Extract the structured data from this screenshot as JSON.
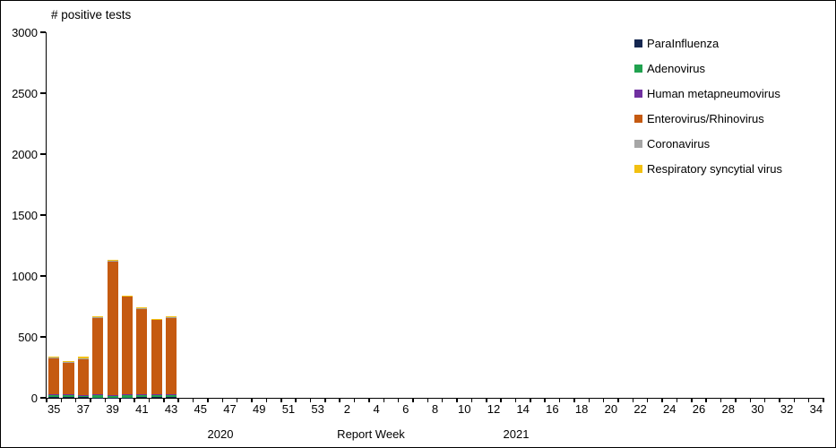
{
  "chart_data": {
    "type": "bar",
    "stacked": true,
    "title": "# positive tests",
    "xlabel": "Report Week",
    "ylabel": "# positive tests",
    "ylim": [
      0,
      3000
    ],
    "yticks": [
      0,
      500,
      1000,
      1500,
      2000,
      2500,
      3000
    ],
    "grid": false,
    "legend_position": "right",
    "x_axis_annotations": {
      "year_left": "2020",
      "axis_title": "Report Week",
      "year_right": "2021"
    },
    "categories": [
      "35",
      "36",
      "37",
      "38",
      "39",
      "40",
      "41",
      "42",
      "43",
      "44",
      "45",
      "46",
      "47",
      "48",
      "49",
      "50",
      "51",
      "52",
      "53",
      "1",
      "2",
      "3",
      "4",
      "5",
      "6",
      "7",
      "8",
      "9",
      "10",
      "11",
      "12",
      "13",
      "14",
      "15",
      "16",
      "17",
      "18",
      "19",
      "20",
      "21",
      "22",
      "23",
      "24",
      "25",
      "26",
      "27",
      "28",
      "29",
      "30",
      "31",
      "32",
      "33",
      "34"
    ],
    "x_labels_every": 2,
    "series": [
      {
        "name": "ParaInfluenza",
        "color": "#152750",
        "values": [
          5,
          8,
          5,
          3,
          3,
          3,
          5,
          5,
          4,
          0,
          0,
          0,
          0,
          0,
          0,
          0,
          0,
          0,
          0,
          0,
          0,
          0,
          0,
          0,
          0,
          0,
          0,
          0,
          0,
          0,
          0,
          0,
          0,
          0,
          0,
          0,
          0,
          0,
          0,
          0,
          0,
          0,
          0,
          0,
          0,
          0,
          0,
          0,
          0,
          0,
          0,
          0,
          0
        ]
      },
      {
        "name": "Adenovirus",
        "color": "#21A24F",
        "values": [
          20,
          15,
          15,
          25,
          12,
          20,
          18,
          15,
          22,
          0,
          0,
          0,
          0,
          0,
          0,
          0,
          0,
          0,
          0,
          0,
          0,
          0,
          0,
          0,
          0,
          0,
          0,
          0,
          0,
          0,
          0,
          0,
          0,
          0,
          0,
          0,
          0,
          0,
          0,
          0,
          0,
          0,
          0,
          0,
          0,
          0,
          0,
          0,
          0,
          0,
          0,
          0,
          0
        ]
      },
      {
        "name": "Human metapneumovirus",
        "color": "#7030A0",
        "values": [
          3,
          3,
          5,
          4,
          5,
          4,
          7,
          8,
          4,
          0,
          0,
          0,
          0,
          0,
          0,
          0,
          0,
          0,
          0,
          0,
          0,
          0,
          0,
          0,
          0,
          0,
          0,
          0,
          0,
          0,
          0,
          0,
          0,
          0,
          0,
          0,
          0,
          0,
          0,
          0,
          0,
          0,
          0,
          0,
          0,
          0,
          0,
          0,
          0,
          0,
          0,
          0,
          0
        ]
      },
      {
        "name": "Enterovirus/Rhinovirus",
        "color": "#C55A11",
        "values": [
          300,
          265,
          290,
          630,
          1100,
          805,
          705,
          612,
          630,
          0,
          0,
          0,
          0,
          0,
          0,
          0,
          0,
          0,
          0,
          0,
          0,
          0,
          0,
          0,
          0,
          0,
          0,
          0,
          0,
          0,
          0,
          0,
          0,
          0,
          0,
          0,
          0,
          0,
          0,
          0,
          0,
          0,
          0,
          0,
          0,
          0,
          0,
          0,
          0,
          0,
          0,
          0,
          0
        ]
      },
      {
        "name": "Coronavirus",
        "color": "#A6A6A6",
        "values": [
          5,
          4,
          12,
          3,
          3,
          3,
          4,
          4,
          4,
          0,
          0,
          0,
          0,
          0,
          0,
          0,
          0,
          0,
          0,
          0,
          0,
          0,
          0,
          0,
          0,
          0,
          0,
          0,
          0,
          0,
          0,
          0,
          0,
          0,
          0,
          0,
          0,
          0,
          0,
          0,
          0,
          0,
          0,
          0,
          0,
          0,
          0,
          0,
          0,
          0,
          0,
          0,
          0
        ]
      },
      {
        "name": "Respiratory syncytial virus",
        "color": "#F2C011",
        "values": [
          7,
          5,
          8,
          5,
          6,
          5,
          6,
          6,
          6,
          0,
          0,
          0,
          0,
          0,
          0,
          0,
          0,
          0,
          0,
          0,
          0,
          0,
          0,
          0,
          0,
          0,
          0,
          0,
          0,
          0,
          0,
          0,
          0,
          0,
          0,
          0,
          0,
          0,
          0,
          0,
          0,
          0,
          0,
          0,
          0,
          0,
          0,
          0,
          0,
          0,
          0,
          0,
          0
        ]
      }
    ],
    "totals_visible_weeks": [
      340,
      300,
      335,
      670,
      1130,
      840,
      745,
      650,
      670
    ]
  }
}
